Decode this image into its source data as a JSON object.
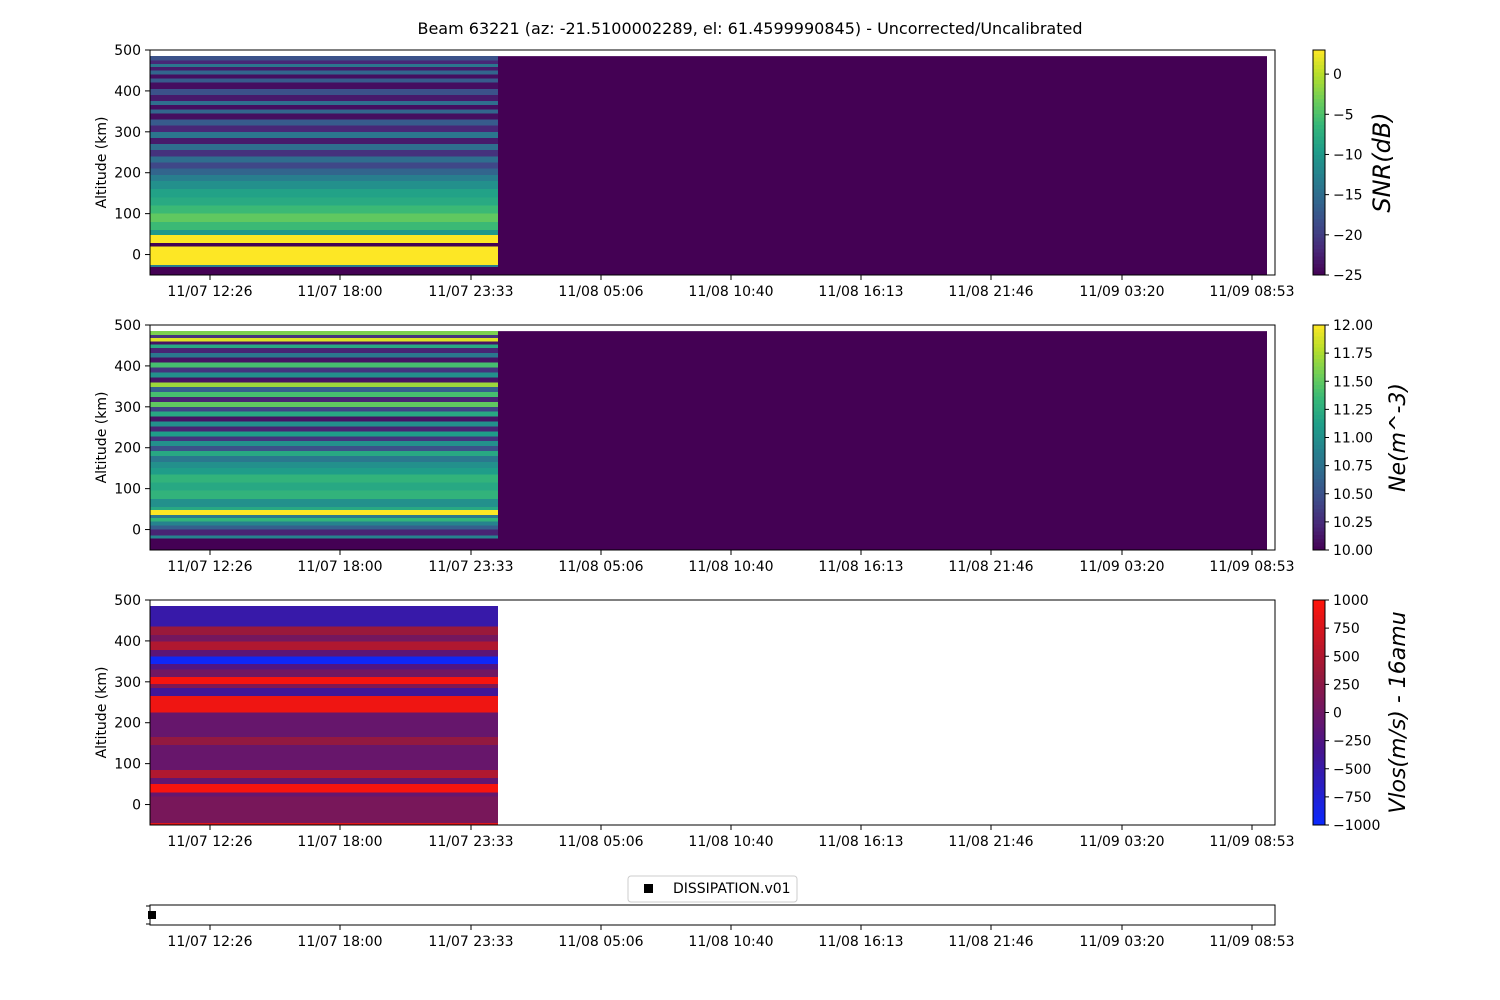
{
  "title": "Beam 63221 (az: -21.5100002289, el: 61.4599990845) - Uncorrected/Uncalibrated",
  "chart_data": [
    {
      "type": "heatmap",
      "ylabel": "Altitude (km)",
      "colorbar_label": "SNR(dB)",
      "colormap": "viridis",
      "ylim": [
        -50,
        500
      ],
      "yticks": [
        "0",
        "100",
        "200",
        "300",
        "400",
        "500"
      ],
      "xticks": [
        "11/07 12:26",
        "11/07 18:00",
        "11/07 23:33",
        "11/08 05:06",
        "11/08 10:40",
        "11/08 16:13",
        "11/08 21:46",
        "11/09 03:20",
        "11/09 08:53"
      ],
      "clim": [
        -25,
        3
      ],
      "colorbar_ticks": [
        "0",
        "−5",
        "−10",
        "−15",
        "−20",
        "−25"
      ],
      "data_end_time": "11/07 23:55",
      "background_value": -25,
      "profile": [
        {
          "alt_from": -50,
          "alt_to": -30,
          "value": -25
        },
        {
          "alt_from": -30,
          "alt_to": -25,
          "value": -13
        },
        {
          "alt_from": -25,
          "alt_to": 20,
          "value": 3
        },
        {
          "alt_from": 20,
          "alt_to": 28,
          "value": -25
        },
        {
          "alt_from": 28,
          "alt_to": 48,
          "value": 3
        },
        {
          "alt_from": 48,
          "alt_to": 60,
          "value": -10
        },
        {
          "alt_from": 60,
          "alt_to": 80,
          "value": -6
        },
        {
          "alt_from": 80,
          "alt_to": 100,
          "value": -4
        },
        {
          "alt_from": 100,
          "alt_to": 120,
          "value": -6
        },
        {
          "alt_from": 120,
          "alt_to": 140,
          "value": -8
        },
        {
          "alt_from": 140,
          "alt_to": 160,
          "value": -9
        },
        {
          "alt_from": 160,
          "alt_to": 180,
          "value": -11
        },
        {
          "alt_from": 180,
          "alt_to": 195,
          "value": -13
        },
        {
          "alt_from": 195,
          "alt_to": 210,
          "value": -16
        },
        {
          "alt_from": 210,
          "alt_to": 225,
          "value": -19
        },
        {
          "alt_from": 225,
          "alt_to": 240,
          "value": -15
        },
        {
          "alt_from": 240,
          "alt_to": 255,
          "value": -21
        },
        {
          "alt_from": 255,
          "alt_to": 270,
          "value": -15
        },
        {
          "alt_from": 270,
          "alt_to": 285,
          "value": -23
        },
        {
          "alt_from": 285,
          "alt_to": 300,
          "value": -14
        },
        {
          "alt_from": 300,
          "alt_to": 315,
          "value": -22
        },
        {
          "alt_from": 315,
          "alt_to": 330,
          "value": -17
        },
        {
          "alt_from": 330,
          "alt_to": 345,
          "value": -24
        },
        {
          "alt_from": 345,
          "alt_to": 355,
          "value": -16
        },
        {
          "alt_from": 355,
          "alt_to": 365,
          "value": -24
        },
        {
          "alt_from": 365,
          "alt_to": 375,
          "value": -15
        },
        {
          "alt_from": 375,
          "alt_to": 390,
          "value": -23
        },
        {
          "alt_from": 390,
          "alt_to": 405,
          "value": -18
        },
        {
          "alt_from": 405,
          "alt_to": 420,
          "value": -24
        },
        {
          "alt_from": 420,
          "alt_to": 430,
          "value": -17
        },
        {
          "alt_from": 430,
          "alt_to": 440,
          "value": -24
        },
        {
          "alt_from": 440,
          "alt_to": 450,
          "value": -16
        },
        {
          "alt_from": 450,
          "alt_to": 458,
          "value": -23
        },
        {
          "alt_from": 458,
          "alt_to": 466,
          "value": -14
        },
        {
          "alt_from": 466,
          "alt_to": 474,
          "value": -22
        },
        {
          "alt_from": 474,
          "alt_to": 485,
          "value": -18
        }
      ]
    },
    {
      "type": "heatmap",
      "ylabel": "Altitude (km)",
      "colorbar_label": "Ne(m^-3)",
      "colormap": "viridis",
      "ylim": [
        -50,
        500
      ],
      "yticks": [
        "0",
        "100",
        "200",
        "300",
        "400",
        "500"
      ],
      "xticks": [
        "11/07 12:26",
        "11/07 18:00",
        "11/07 23:33",
        "11/08 05:06",
        "11/08 10:40",
        "11/08 16:13",
        "11/08 21:46",
        "11/09 03:20",
        "11/09 08:53"
      ],
      "clim": [
        10,
        12
      ],
      "colorbar_ticks": [
        "12.00",
        "11.75",
        "11.50",
        "11.25",
        "11.00",
        "10.75",
        "10.50",
        "10.25",
        "10.00"
      ],
      "data_end_time": "11/07 23:55",
      "background_value": 10,
      "profile": [
        {
          "alt_from": -50,
          "alt_to": -22,
          "value": 10
        },
        {
          "alt_from": -22,
          "alt_to": -15,
          "value": 10.9
        },
        {
          "alt_from": -15,
          "alt_to": 0,
          "value": 10.2
        },
        {
          "alt_from": 0,
          "alt_to": 10,
          "value": 10.6
        },
        {
          "alt_from": 10,
          "alt_to": 20,
          "value": 10.9
        },
        {
          "alt_from": 20,
          "alt_to": 28,
          "value": 11.3
        },
        {
          "alt_from": 28,
          "alt_to": 35,
          "value": 10.8
        },
        {
          "alt_from": 35,
          "alt_to": 48,
          "value": 12
        },
        {
          "alt_from": 48,
          "alt_to": 55,
          "value": 11.2
        },
        {
          "alt_from": 55,
          "alt_to": 75,
          "value": 11.0
        },
        {
          "alt_from": 75,
          "alt_to": 95,
          "value": 11.3
        },
        {
          "alt_from": 95,
          "alt_to": 115,
          "value": 11.2
        },
        {
          "alt_from": 115,
          "alt_to": 135,
          "value": 11.3
        },
        {
          "alt_from": 135,
          "alt_to": 150,
          "value": 11.1
        },
        {
          "alt_from": 150,
          "alt_to": 165,
          "value": 11.0
        },
        {
          "alt_from": 165,
          "alt_to": 180,
          "value": 10.8
        },
        {
          "alt_from": 180,
          "alt_to": 192,
          "value": 11.2
        },
        {
          "alt_from": 192,
          "alt_to": 204,
          "value": 10.5
        },
        {
          "alt_from": 204,
          "alt_to": 216,
          "value": 11.0
        },
        {
          "alt_from": 216,
          "alt_to": 228,
          "value": 10.3
        },
        {
          "alt_from": 228,
          "alt_to": 240,
          "value": 11.1
        },
        {
          "alt_from": 240,
          "alt_to": 252,
          "value": 10.2
        },
        {
          "alt_from": 252,
          "alt_to": 264,
          "value": 11.0
        },
        {
          "alt_from": 264,
          "alt_to": 276,
          "value": 10.1
        },
        {
          "alt_from": 276,
          "alt_to": 288,
          "value": 11.2
        },
        {
          "alt_from": 288,
          "alt_to": 300,
          "value": 10.4
        },
        {
          "alt_from": 300,
          "alt_to": 312,
          "value": 11.5
        },
        {
          "alt_from": 312,
          "alt_to": 324,
          "value": 10.2
        },
        {
          "alt_from": 324,
          "alt_to": 336,
          "value": 11.4
        },
        {
          "alt_from": 336,
          "alt_to": 348,
          "value": 10.6
        },
        {
          "alt_from": 348,
          "alt_to": 360,
          "value": 11.7
        },
        {
          "alt_from": 360,
          "alt_to": 372,
          "value": 10.1
        },
        {
          "alt_from": 372,
          "alt_to": 384,
          "value": 11.0
        },
        {
          "alt_from": 384,
          "alt_to": 396,
          "value": 10.3
        },
        {
          "alt_from": 396,
          "alt_to": 408,
          "value": 11.4
        },
        {
          "alt_from": 408,
          "alt_to": 420,
          "value": 10.1
        },
        {
          "alt_from": 420,
          "alt_to": 432,
          "value": 10.8
        },
        {
          "alt_from": 432,
          "alt_to": 444,
          "value": 10.2
        },
        {
          "alt_from": 444,
          "alt_to": 452,
          "value": 11.2
        },
        {
          "alt_from": 452,
          "alt_to": 460,
          "value": 10.1
        },
        {
          "alt_from": 460,
          "alt_to": 468,
          "value": 11.9
        },
        {
          "alt_from": 468,
          "alt_to": 476,
          "value": 10.3
        },
        {
          "alt_from": 476,
          "alt_to": 485,
          "value": 11.6
        }
      ]
    },
    {
      "type": "heatmap",
      "ylabel": "Altitude (km)",
      "colorbar_label": "Vlos(m/s) - 16amu",
      "colormap": "blue-purple-red",
      "ylim": [
        -50,
        500
      ],
      "yticks": [
        "0",
        "100",
        "200",
        "300",
        "400",
        "500"
      ],
      "xticks": [
        "11/07 12:26",
        "11/07 18:00",
        "11/07 23:33",
        "11/08 05:06",
        "11/08 10:40",
        "11/08 16:13",
        "11/08 21:46",
        "11/09 03:20",
        "11/09 08:53"
      ],
      "clim": [
        -1000,
        1000
      ],
      "colorbar_ticks": [
        "1000",
        "750",
        "500",
        "250",
        "0",
        "−250",
        "−500",
        "−750",
        "−1000"
      ],
      "data_end_time": "11/07 23:55",
      "background_value": null,
      "profile": [
        {
          "alt_from": -50,
          "alt_to": -45,
          "value": 800
        },
        {
          "alt_from": -45,
          "alt_to": 20,
          "value": 80
        },
        {
          "alt_from": 20,
          "alt_to": 30,
          "value": -80
        },
        {
          "alt_from": 30,
          "alt_to": 50,
          "value": 950
        },
        {
          "alt_from": 50,
          "alt_to": 65,
          "value": -100
        },
        {
          "alt_from": 65,
          "alt_to": 85,
          "value": 500
        },
        {
          "alt_from": 85,
          "alt_to": 145,
          "value": -60
        },
        {
          "alt_from": 145,
          "alt_to": 165,
          "value": 300
        },
        {
          "alt_from": 165,
          "alt_to": 225,
          "value": -70
        },
        {
          "alt_from": 225,
          "alt_to": 265,
          "value": 900
        },
        {
          "alt_from": 265,
          "alt_to": 285,
          "value": -400
        },
        {
          "alt_from": 285,
          "alt_to": 295,
          "value": 150
        },
        {
          "alt_from": 295,
          "alt_to": 312,
          "value": 950
        },
        {
          "alt_from": 312,
          "alt_to": 330,
          "value": 20
        },
        {
          "alt_from": 330,
          "alt_to": 343,
          "value": -250
        },
        {
          "alt_from": 343,
          "alt_to": 362,
          "value": -950
        },
        {
          "alt_from": 362,
          "alt_to": 378,
          "value": -150
        },
        {
          "alt_from": 378,
          "alt_to": 398,
          "value": 500
        },
        {
          "alt_from": 398,
          "alt_to": 415,
          "value": 50
        },
        {
          "alt_from": 415,
          "alt_to": 435,
          "value": 350
        },
        {
          "alt_from": 435,
          "alt_to": 485,
          "value": -500
        }
      ]
    },
    {
      "type": "scatter",
      "legend": [
        "DISSIPATION.v01"
      ],
      "xticks": [
        "11/07 12:26",
        "11/07 18:00",
        "11/07 23:33",
        "11/08 05:06",
        "11/08 10:40",
        "11/08 16:13",
        "11/08 21:46",
        "11/09 03:20",
        "11/09 08:53"
      ],
      "points": [
        {
          "x": "11/07 09:18"
        }
      ]
    }
  ]
}
